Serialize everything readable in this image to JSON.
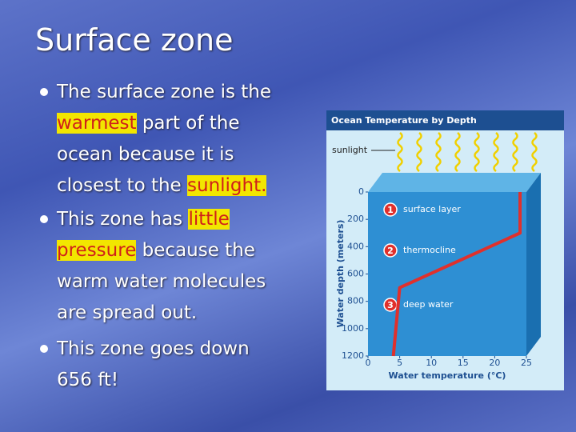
{
  "title": "Surface zone",
  "bullets": [
    {
      "lines": [
        [
          {
            "text": "The surface zone is the"
          }
        ],
        [
          {
            "text": "warmest",
            "highlighted": true
          },
          {
            "text": " part of the"
          }
        ],
        [
          {
            "text": "ocean because it is"
          }
        ],
        [
          {
            "text": "closest to the "
          },
          {
            "text": "sunlight.",
            "highlighted": true
          }
        ]
      ]
    },
    {
      "lines": [
        [
          {
            "text": "This zone has "
          },
          {
            "text": "little",
            "highlighted": true
          }
        ],
        [
          {
            "text": "pressure",
            "highlighted": true
          },
          {
            "text": " because the"
          }
        ],
        [
          {
            "text": "warm water molecules"
          }
        ],
        [
          {
            "text": "are spread out."
          }
        ]
      ]
    },
    {
      "lines": [
        [
          {
            "text": "This zone goes down"
          }
        ],
        [
          {
            "text": "656 ft!"
          }
        ]
      ]
    }
  ],
  "figure": {
    "title": "Ocean Temperature by Depth",
    "sunlight_label": "sunlight",
    "y_label": "Water depth (meters)",
    "x_label": "Water temperature (°C)",
    "xlim": [
      0,
      25
    ],
    "xticks": [
      0,
      5,
      10,
      15,
      20,
      25
    ],
    "ylim": [
      0,
      1200
    ],
    "yticks": [
      0,
      200,
      400,
      600,
      800,
      1000,
      1200
    ],
    "zones": [
      {
        "number": "1",
        "label": "surface layer"
      },
      {
        "number": "2",
        "label": "thermocline"
      },
      {
        "number": "3",
        "label": "deep water"
      }
    ],
    "profile": {
      "color": "#e0302c",
      "temperature": [
        24,
        24,
        5,
        4
      ],
      "depth": [
        0,
        300,
        700,
        1200
      ]
    }
  }
}
